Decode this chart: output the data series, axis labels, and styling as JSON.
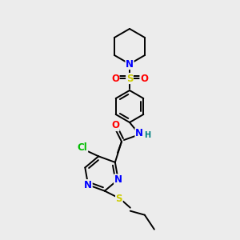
{
  "bg_color": "#ececec",
  "atom_colors": {
    "C": "#000000",
    "N": "#0000ff",
    "O": "#ff0000",
    "S": "#cccc00",
    "Cl": "#00bb00",
    "H": "#008080"
  },
  "bond_color": "#000000",
  "bond_width": 1.4,
  "font_size": 8.5,
  "figsize": [
    3.0,
    3.0
  ],
  "dpi": 100
}
